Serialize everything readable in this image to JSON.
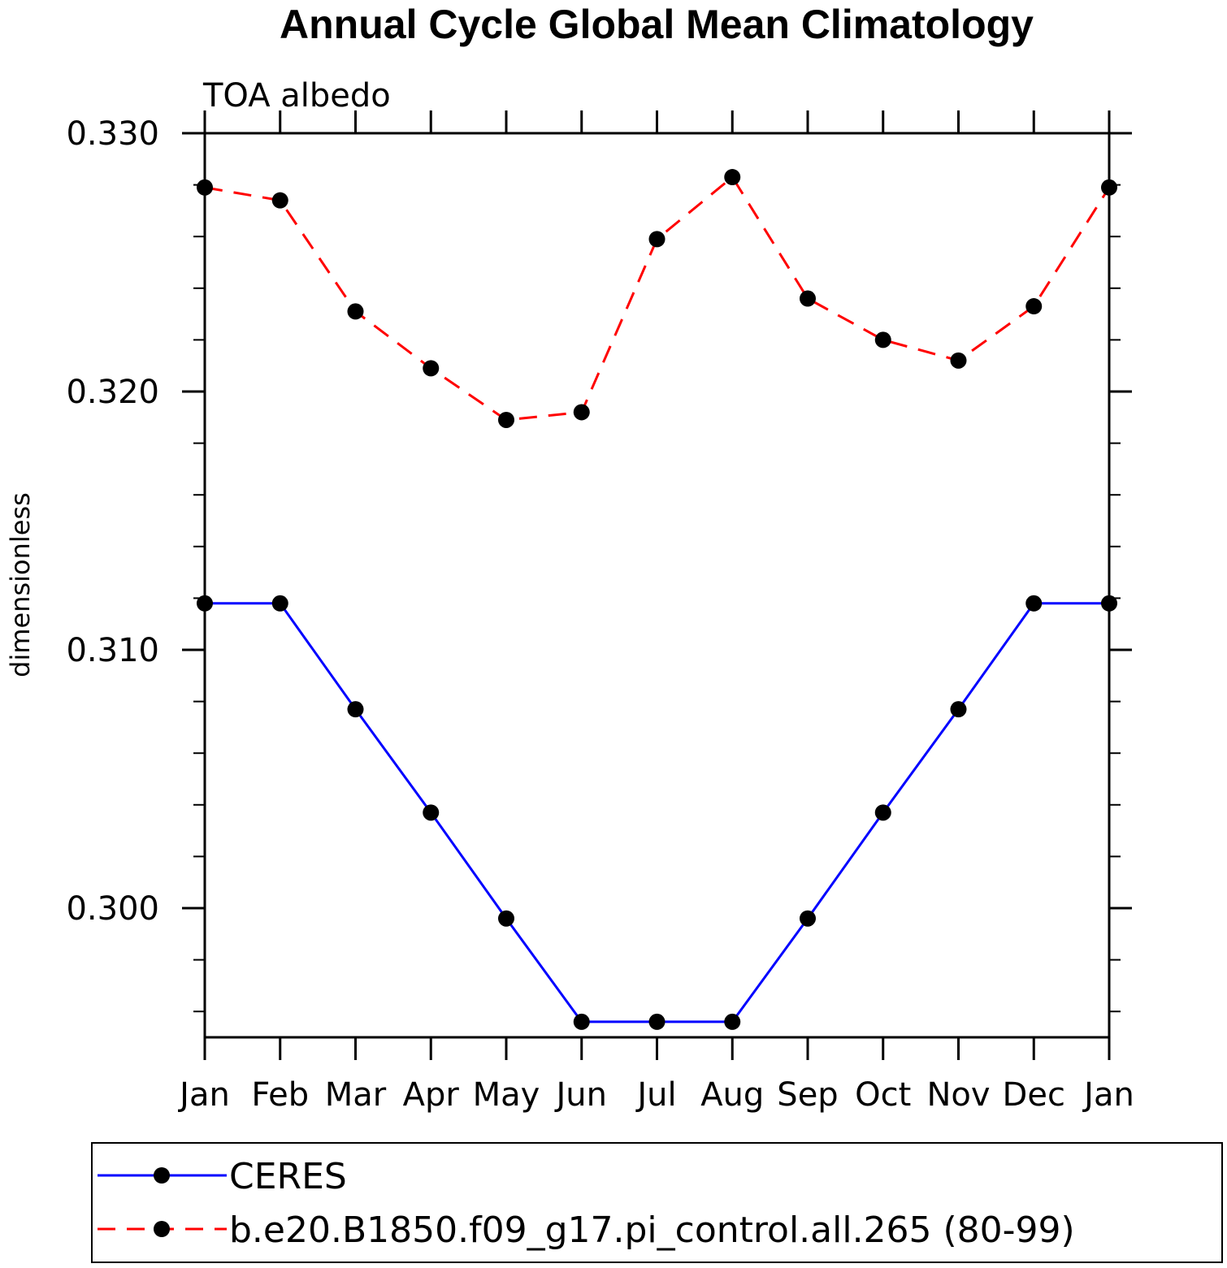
{
  "chart_data": {
    "type": "line",
    "title": "Annual Cycle Global Mean Climatology",
    "subtitle": "TOA albedo",
    "xlabel": "",
    "ylabel": "dimensionless",
    "categories": [
      "Jan",
      "Feb",
      "Mar",
      "Apr",
      "May",
      "Jun",
      "Jul",
      "Aug",
      "Sep",
      "Oct",
      "Nov",
      "Dec",
      "Jan"
    ],
    "ylim": [
      0.295,
      0.33
    ],
    "yticks": [
      "0.300",
      "0.310",
      "0.320",
      "0.330"
    ],
    "grid": false,
    "legend_position": "bottom",
    "series": [
      {
        "name": "CERES",
        "color": "#0000ff",
        "line_style": "solid",
        "marker": "filled-circle",
        "values": [
          0.3118,
          0.3118,
          0.3077,
          0.3037,
          0.2996,
          0.2956,
          0.2956,
          0.2956,
          0.2996,
          0.3037,
          0.3077,
          0.3118,
          0.3118
        ]
      },
      {
        "name": "b.e20.B1850.f09_g17.pi_control.all.265 (80-99)",
        "color": "#ff0000",
        "line_style": "dashed",
        "marker": "filled-circle",
        "values": [
          0.3279,
          0.3274,
          0.3231,
          0.3209,
          0.3189,
          0.3192,
          0.3259,
          0.3283,
          0.3236,
          0.322,
          0.3212,
          0.3233,
          0.3279
        ]
      }
    ]
  }
}
